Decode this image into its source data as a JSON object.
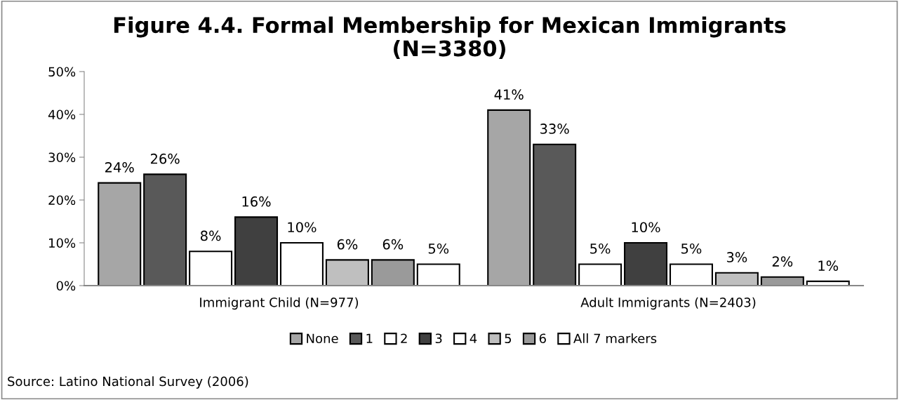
{
  "chart_data": {
    "type": "bar",
    "title": "Figure 4.4. Formal Membership for Mexican Immigrants\n(N=3380)",
    "categories": [
      "Immigrant Child (N=977)",
      "Adult Immigrants (N=2403)"
    ],
    "series": [
      {
        "name": "None",
        "color": "#a6a6a6",
        "values": [
          24,
          41
        ],
        "value_labels": [
          "24%",
          "41%"
        ]
      },
      {
        "name": "1",
        "color": "#595959",
        "values": [
          26,
          33
        ],
        "value_labels": [
          "26%",
          "33%"
        ]
      },
      {
        "name": "2",
        "color": "#ffffff",
        "values": [
          8,
          5
        ],
        "value_labels": [
          "8%",
          "5%"
        ]
      },
      {
        "name": "3",
        "color": "#404040",
        "values": [
          16,
          10
        ],
        "value_labels": [
          "16%",
          "10%"
        ]
      },
      {
        "name": "4",
        "color": "#ffffff",
        "values": [
          10,
          5
        ],
        "value_labels": [
          "10%",
          "5%"
        ]
      },
      {
        "name": "5",
        "color": "#bfbfbf",
        "values": [
          6,
          3
        ],
        "value_labels": [
          "6%",
          "3%"
        ]
      },
      {
        "name": "6",
        "color": "#9a9a9a",
        "values": [
          6,
          2
        ],
        "value_labels": [
          "6%",
          "2%"
        ]
      },
      {
        "name": "All 7 markers",
        "color": "#ffffff",
        "values": [
          5,
          1
        ],
        "value_labels": [
          "5%",
          "1%"
        ]
      }
    ],
    "ylim": [
      0,
      50
    ],
    "yticks": [
      {
        "value": 0,
        "label": "0%"
      },
      {
        "value": 10,
        "label": "10%"
      },
      {
        "value": 20,
        "label": "20%"
      },
      {
        "value": 30,
        "label": "30%"
      },
      {
        "value": 40,
        "label": "40%"
      },
      {
        "value": 50,
        "label": "50%"
      }
    ],
    "grid": false,
    "legend": "bottom",
    "annotations": [
      "Source: Latino National Survey (2006)"
    ]
  }
}
